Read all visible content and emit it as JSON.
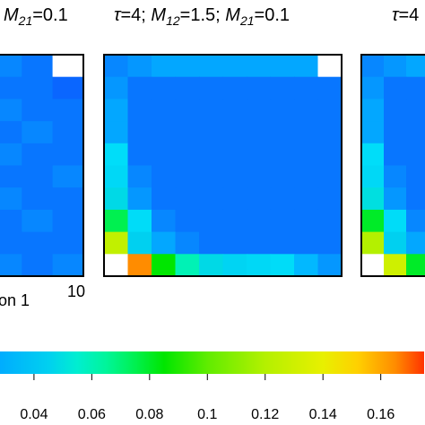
{
  "panel_titles": [
    {
      "pre": "",
      "m21": "=0.1"
    },
    {
      "tau": "τ",
      "tau_val": "=4; ",
      "m12": "=1.5; ",
      "m21": "=0.1"
    },
    {
      "tau": "τ",
      "tau_val": "=4"
    }
  ],
  "symbols": {
    "M": "M",
    "sub12": "12",
    "sub21": "21"
  },
  "axis_texts": {
    "left_xlabel_fragment": "on 1",
    "left_xtick_max": "10"
  },
  "colorbar": {
    "ticks": [
      "0.04",
      "0.06",
      "0.08",
      "0.1",
      "0.12",
      "0.14",
      "0.16"
    ],
    "tick_values": [
      0.04,
      0.06,
      0.08,
      0.1,
      0.12,
      0.14,
      0.16
    ],
    "range": [
      0.027,
      0.175
    ],
    "stops": [
      {
        "v": 0.027,
        "color": "#00e5ff"
      },
      {
        "v": 0.045,
        "color": "#00d0f0"
      },
      {
        "v": 0.055,
        "color": "#00eed0"
      },
      {
        "v": 0.065,
        "color": "#00f59a"
      },
      {
        "v": 0.075,
        "color": "#00f050"
      },
      {
        "v": 0.085,
        "color": "#00e600"
      },
      {
        "v": 0.1,
        "color": "#60ec00"
      },
      {
        "v": 0.12,
        "color": "#b4f000"
      },
      {
        "v": 0.14,
        "color": "#e8f000"
      },
      {
        "v": 0.152,
        "color": "#ffd000"
      },
      {
        "v": 0.165,
        "color": "#ff8c00"
      },
      {
        "v": 0.175,
        "color": "#ff3300"
      }
    ]
  },
  "colors": {
    "low_end": "#00aaff",
    "frame": "#000000",
    "white_cell": "#ffffff"
  },
  "chart_data": [
    {
      "type": "heatmap",
      "title": "M21=0.1 (partially visible)",
      "nrows": 10,
      "visible_cols": 3,
      "visible_rows_note": "rows 1-10, cols 8-10 visible",
      "rows": [
        [
          0.03,
          0.029,
          null
        ],
        [
          0.029,
          0.029,
          0.028
        ],
        [
          0.03,
          0.029,
          0.029
        ],
        [
          0.029,
          0.03,
          0.029
        ],
        [
          0.03,
          0.029,
          0.029
        ],
        [
          0.029,
          0.029,
          0.03
        ],
        [
          0.03,
          0.029,
          0.029
        ],
        [
          0.029,
          0.03,
          0.029
        ],
        [
          0.029,
          0.029,
          0.029
        ],
        [
          0.03,
          0.029,
          0.03
        ]
      ]
    },
    {
      "type": "heatmap",
      "title": "τ=4; M12=1.5; M21=0.1",
      "nrows": 10,
      "ncols": 10,
      "rows": [
        [
          0.03,
          0.031,
          0.032,
          0.032,
          0.032,
          0.032,
          0.032,
          0.032,
          0.032,
          null
        ],
        [
          0.031,
          0.029,
          0.029,
          0.029,
          0.029,
          0.029,
          0.029,
          0.029,
          0.029,
          0.029
        ],
        [
          0.032,
          0.029,
          0.029,
          0.029,
          0.029,
          0.029,
          0.029,
          0.029,
          0.029,
          0.029
        ],
        [
          0.032,
          0.029,
          0.029,
          0.029,
          0.029,
          0.029,
          0.029,
          0.029,
          0.029,
          0.029
        ],
        [
          0.034,
          0.029,
          0.029,
          0.029,
          0.029,
          0.029,
          0.029,
          0.029,
          0.029,
          0.029
        ],
        [
          0.038,
          0.03,
          0.029,
          0.029,
          0.029,
          0.029,
          0.029,
          0.029,
          0.029,
          0.029
        ],
        [
          0.048,
          0.031,
          0.029,
          0.029,
          0.029,
          0.029,
          0.029,
          0.029,
          0.029,
          0.029
        ],
        [
          0.075,
          0.035,
          0.03,
          0.029,
          0.029,
          0.029,
          0.029,
          0.029,
          0.029,
          0.029
        ],
        [
          0.125,
          0.045,
          0.032,
          0.03,
          0.029,
          0.029,
          0.029,
          0.029,
          0.029,
          0.029
        ],
        [
          null,
          0.165,
          0.085,
          0.06,
          0.048,
          0.042,
          0.038,
          0.035,
          0.033,
          0.031
        ]
      ]
    },
    {
      "type": "heatmap",
      "title": "τ=4 (partially visible)",
      "nrows": 10,
      "visible_cols": 3,
      "visible_rows_note": "rows 1-10, cols 1-3 visible",
      "rows": [
        [
          0.03,
          0.031,
          0.032
        ],
        [
          0.031,
          0.029,
          0.029
        ],
        [
          0.032,
          0.029,
          0.029
        ],
        [
          0.032,
          0.029,
          0.029
        ],
        [
          0.034,
          0.029,
          0.029
        ],
        [
          0.038,
          0.03,
          0.029
        ],
        [
          0.05,
          0.031,
          0.029
        ],
        [
          0.08,
          0.035,
          0.03
        ],
        [
          0.12,
          0.045,
          0.032
        ],
        [
          null,
          0.13,
          0.08
        ]
      ]
    }
  ]
}
